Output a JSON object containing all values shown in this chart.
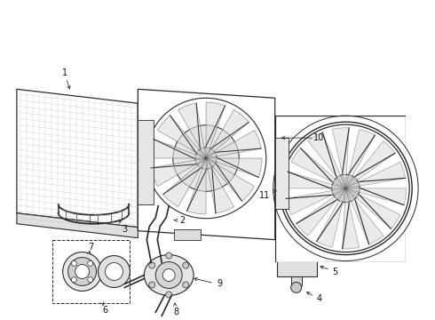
{
  "background_color": "#ffffff",
  "line_color": "#2a2a2a",
  "label_color": "#111111",
  "fig_width": 4.9,
  "fig_height": 3.6,
  "dpi": 100,
  "gray_light": "#bbbbbb",
  "gray_med": "#888888",
  "gray_dark": "#555555"
}
